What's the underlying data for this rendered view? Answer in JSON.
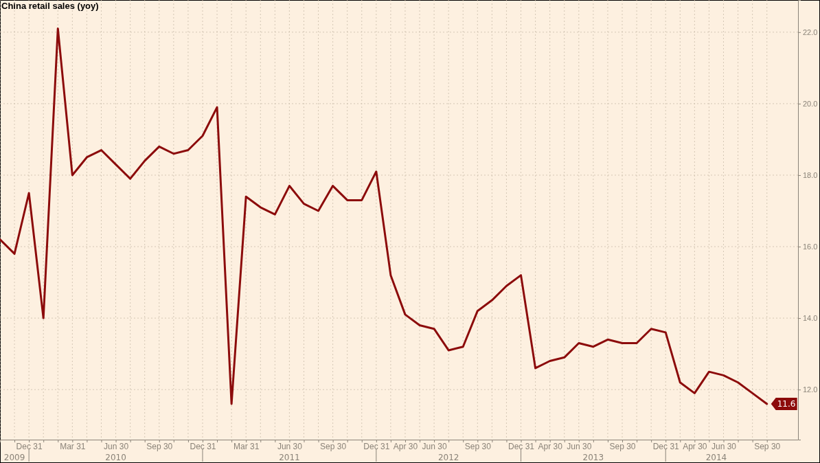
{
  "chart_data": {
    "type": "line",
    "title": "China retail sales (yoy)",
    "categories": [
      null,
      null,
      "Dec 31",
      null,
      null,
      "Mar 31",
      null,
      null,
      "Jun 30",
      null,
      null,
      "Sep 30",
      null,
      null,
      "Dec 31",
      null,
      null,
      "Mar 31",
      null,
      null,
      "Jun 30",
      null,
      null,
      "Sep 30",
      null,
      null,
      "Dec 31",
      null,
      "Apr 30",
      null,
      "Jun 30",
      null,
      null,
      "Sep 30",
      null,
      null,
      "Dec 31",
      null,
      "Apr 30",
      null,
      "Jun 30",
      null,
      null,
      "Sep 30",
      null,
      null,
      "Dec 31",
      null,
      "Apr 30",
      null,
      "Jun 30",
      null,
      null,
      "Sep 30"
    ],
    "series": [
      {
        "color": "#8c0b0b",
        "values": [
          16.2,
          15.8,
          17.5,
          14.0,
          22.1,
          18.0,
          18.5,
          18.7,
          18.3,
          17.9,
          18.4,
          18.8,
          18.6,
          18.7,
          19.1,
          19.9,
          11.6,
          17.4,
          17.1,
          16.9,
          17.7,
          17.2,
          17.0,
          17.7,
          17.3,
          17.3,
          18.1,
          15.2,
          14.1,
          13.8,
          13.7,
          13.1,
          13.2,
          14.2,
          14.5,
          14.9,
          15.2,
          12.6,
          12.8,
          12.9,
          13.3,
          13.2,
          13.4,
          13.3,
          13.3,
          13.7,
          13.6,
          12.2,
          11.9,
          12.5,
          12.4,
          12.2,
          11.9,
          11.6
        ],
        "value_labels": [
          null,
          null,
          null,
          null,
          null,
          null,
          null,
          null,
          null,
          null,
          null,
          null,
          null,
          null,
          null,
          null,
          null,
          null,
          null,
          null,
          null,
          null,
          null,
          null,
          null,
          null,
          null,
          null,
          null,
          null,
          null,
          null,
          null,
          null,
          null,
          null,
          null,
          null,
          null,
          null,
          null,
          null,
          null,
          null,
          null,
          null,
          null,
          null,
          null,
          null,
          null,
          null,
          null,
          "11.6"
        ]
      }
    ],
    "ylim": [
      10.6,
      22.9
    ],
    "yticks": [
      {
        "value": 12,
        "label": "12.0"
      },
      {
        "value": 14,
        "label": "14.0"
      },
      {
        "value": 16,
        "label": "16.0"
      },
      {
        "value": 18,
        "label": "18.0"
      },
      {
        "value": 20,
        "label": "20.0"
      },
      {
        "value": 22,
        "label": "22.0"
      }
    ],
    "grid": true,
    "line_style": "solid",
    "marker": "none",
    "annotations": [
      "2009",
      "2010",
      "2011",
      "2012",
      "2013",
      "2014"
    ]
  }
}
